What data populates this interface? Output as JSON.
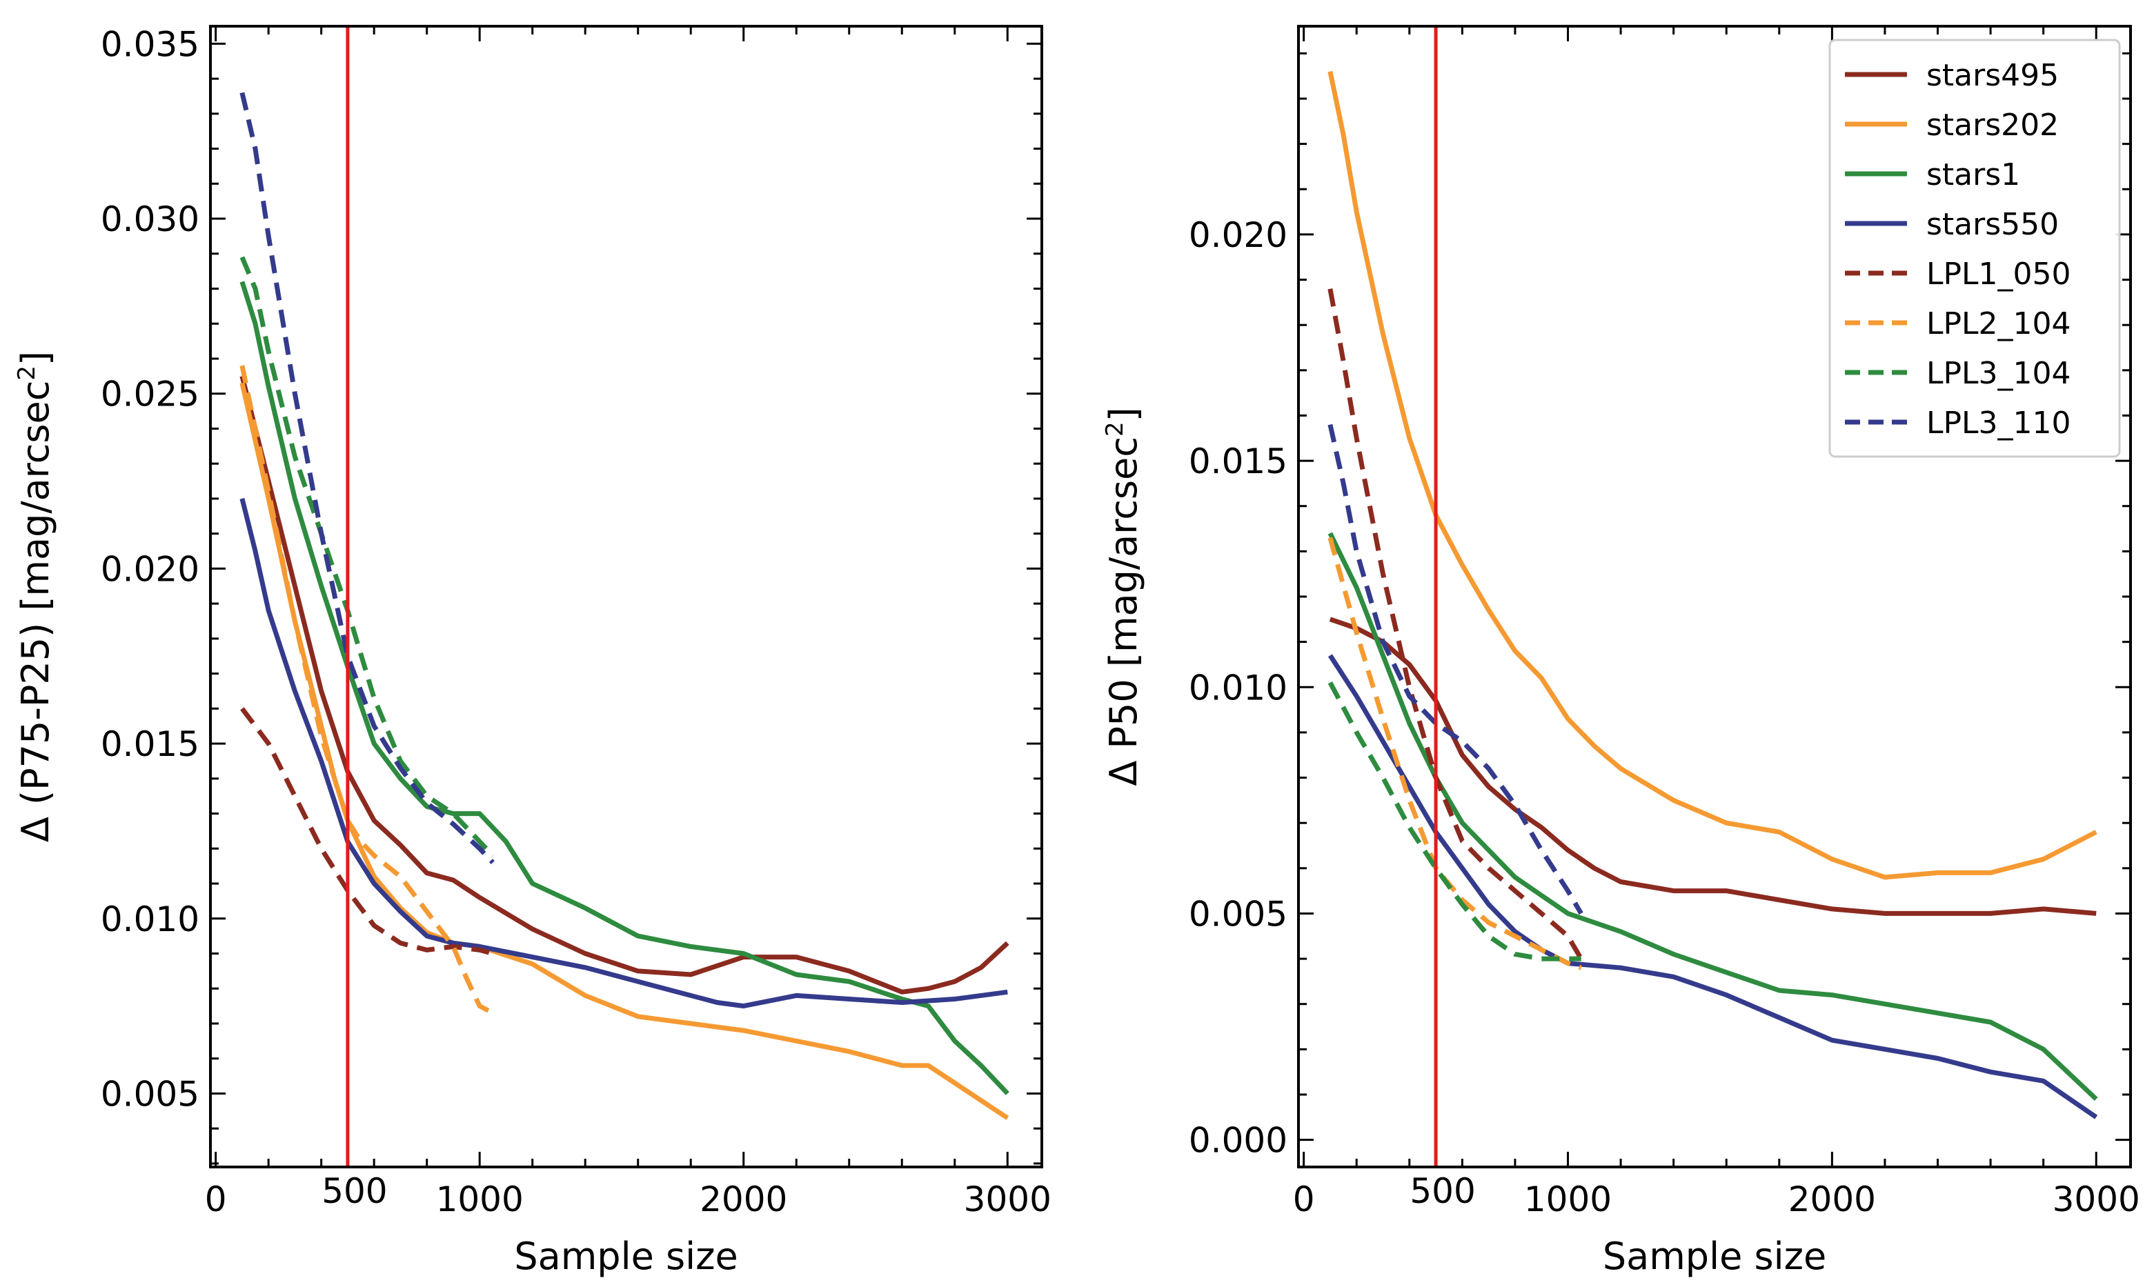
{
  "chart_data": [
    {
      "type": "line",
      "panel": "left",
      "title": "",
      "xlabel": "Sample size",
      "ylabel": "Δ (P75-P25) [mag/arcsec^2]",
      "ylabel_main": "Δ (P75-P25) [mag/arcsec",
      "ylabel_sup": "2",
      "ylabel_close": "]",
      "xlim": [
        -20,
        3130
      ],
      "ylim": [
        0.0029,
        0.0355
      ],
      "xticks": [
        0,
        1000,
        2000,
        3000
      ],
      "xtick_labels": [
        "0",
        "1000",
        "2000",
        "3000"
      ],
      "yticks": [
        0.005,
        0.01,
        0.015,
        0.02,
        0.025,
        0.03,
        0.035
      ],
      "ytick_labels": [
        "0.005",
        "0.010",
        "0.015",
        "0.020",
        "0.025",
        "0.030",
        "0.035"
      ],
      "vline": {
        "x": 500,
        "label": "500",
        "color": "#e41a1c"
      },
      "series": [
        {
          "name": "stars495",
          "color": "#8b2a1f",
          "dash": false,
          "x": [
            100,
            200,
            300,
            400,
            500,
            600,
            700,
            800,
            900,
            1000,
            1200,
            1400,
            1600,
            1800,
            2000,
            2200,
            2400,
            2500,
            2600,
            2700,
            2800,
            2900,
            3000
          ],
          "y": [
            0.0255,
            0.0225,
            0.0195,
            0.0165,
            0.0142,
            0.0128,
            0.0121,
            0.0113,
            0.0111,
            0.0106,
            0.0097,
            0.009,
            0.0085,
            0.0084,
            0.0089,
            0.0089,
            0.0085,
            0.0082,
            0.0079,
            0.008,
            0.0082,
            0.0086,
            0.0093
          ]
        },
        {
          "name": "stars202",
          "color": "#f59a32",
          "dash": false,
          "x": [
            100,
            200,
            300,
            400,
            450,
            500,
            600,
            700,
            800,
            900,
            1000,
            1200,
            1400,
            1600,
            1800,
            2000,
            2200,
            2400,
            2600,
            2700,
            2800,
            2900,
            3000
          ],
          "y": [
            0.0253,
            0.022,
            0.0185,
            0.0155,
            0.014,
            0.0128,
            0.0112,
            0.0103,
            0.0096,
            0.0093,
            0.0092,
            0.0087,
            0.0078,
            0.0072,
            0.007,
            0.0068,
            0.0065,
            0.0062,
            0.0058,
            0.0058,
            0.0053,
            0.0048,
            0.0043
          ]
        },
        {
          "name": "stars1",
          "color": "#2e8b3f",
          "dash": false,
          "x": [
            100,
            150,
            200,
            300,
            400,
            500,
            600,
            700,
            800,
            900,
            1000,
            1100,
            1200,
            1400,
            1600,
            1800,
            2000,
            2200,
            2400,
            2600,
            2700,
            2800,
            2900,
            3000
          ],
          "y": [
            0.0282,
            0.027,
            0.0252,
            0.022,
            0.0195,
            0.0172,
            0.015,
            0.014,
            0.0132,
            0.013,
            0.013,
            0.0122,
            0.011,
            0.0103,
            0.0095,
            0.0092,
            0.009,
            0.0084,
            0.0082,
            0.0077,
            0.0075,
            0.0065,
            0.0058,
            0.005
          ]
        },
        {
          "name": "stars550",
          "color": "#343b8c",
          "dash": false,
          "x": [
            100,
            150,
            200,
            300,
            400,
            500,
            600,
            700,
            800,
            900,
            1000,
            1200,
            1400,
            1600,
            1800,
            1900,
            2000,
            2200,
            2400,
            2600,
            2800,
            3000
          ],
          "y": [
            0.022,
            0.0205,
            0.0188,
            0.0165,
            0.0145,
            0.0122,
            0.011,
            0.0102,
            0.0095,
            0.0093,
            0.0092,
            0.0089,
            0.0086,
            0.0082,
            0.0078,
            0.0076,
            0.0075,
            0.0078,
            0.0077,
            0.0076,
            0.0077,
            0.0079
          ]
        },
        {
          "name": "LPL1_050",
          "color": "#8b2a1f",
          "dash": true,
          "x": [
            100,
            200,
            300,
            400,
            500,
            600,
            700,
            800,
            900,
            1000,
            1050
          ],
          "y": [
            0.016,
            0.015,
            0.0135,
            0.012,
            0.0108,
            0.0098,
            0.0093,
            0.0091,
            0.0092,
            0.0091,
            0.009
          ]
        },
        {
          "name": "LPL2_104",
          "color": "#f59a32",
          "dash": true,
          "x": [
            100,
            200,
            300,
            400,
            500,
            550,
            600,
            700,
            800,
            900,
            950,
            1000,
            1050
          ],
          "y": [
            0.0258,
            0.0222,
            0.0185,
            0.0152,
            0.0128,
            0.0122,
            0.0118,
            0.0112,
            0.0102,
            0.0092,
            0.0083,
            0.0075,
            0.0073
          ]
        },
        {
          "name": "LPL3_104",
          "color": "#2e8b3f",
          "dash": true,
          "x": [
            100,
            150,
            200,
            300,
            400,
            500,
            600,
            700,
            800,
            900,
            1000,
            1050
          ],
          "y": [
            0.0289,
            0.028,
            0.0262,
            0.0232,
            0.021,
            0.0188,
            0.0163,
            0.0145,
            0.0135,
            0.013,
            0.0122,
            0.0118
          ]
        },
        {
          "name": "LPL3_110",
          "color": "#343b8c",
          "dash": true,
          "x": [
            100,
            150,
            200,
            300,
            400,
            500,
            600,
            700,
            800,
            900,
            1000,
            1050
          ],
          "y": [
            0.0336,
            0.032,
            0.0295,
            0.025,
            0.021,
            0.0175,
            0.0155,
            0.0143,
            0.0133,
            0.0127,
            0.012,
            0.0116
          ]
        }
      ]
    },
    {
      "type": "line",
      "panel": "right",
      "title": "",
      "xlabel": "Sample size",
      "ylabel": "Δ P50 [mag/arcsec^2]",
      "ylabel_main": "Δ P50 [mag/arcsec",
      "ylabel_sup": "2",
      "ylabel_close": "]",
      "xlim": [
        -20,
        3130
      ],
      "ylim": [
        -0.0006,
        0.0246
      ],
      "xticks": [
        0,
        1000,
        2000,
        3000
      ],
      "xtick_labels": [
        "0",
        "1000",
        "2000",
        "3000"
      ],
      "yticks": [
        0.0,
        0.005,
        0.01,
        0.015,
        0.02
      ],
      "ytick_labels": [
        "0.000",
        "0.005",
        "0.010",
        "0.015",
        "0.020"
      ],
      "vline": {
        "x": 500,
        "label": "500",
        "color": "#e41a1c"
      },
      "legend": {
        "placement": "top-right"
      },
      "series": [
        {
          "name": "stars495",
          "color": "#8b2a1f",
          "dash": false,
          "x": [
            100,
            200,
            300,
            400,
            500,
            600,
            700,
            800,
            900,
            1000,
            1100,
            1200,
            1400,
            1600,
            1800,
            2000,
            2200,
            2400,
            2600,
            2800,
            3000
          ],
          "y": [
            0.0115,
            0.0113,
            0.011,
            0.0105,
            0.0097,
            0.0085,
            0.0078,
            0.0073,
            0.0069,
            0.0064,
            0.006,
            0.0057,
            0.0055,
            0.0055,
            0.0053,
            0.0051,
            0.005,
            0.005,
            0.005,
            0.0051,
            0.005
          ]
        },
        {
          "name": "stars202",
          "color": "#f59a32",
          "dash": false,
          "x": [
            100,
            150,
            200,
            300,
            400,
            500,
            600,
            700,
            800,
            900,
            1000,
            1100,
            1200,
            1400,
            1600,
            1800,
            2000,
            2200,
            2400,
            2600,
            2800,
            3000
          ],
          "y": [
            0.0236,
            0.0222,
            0.0205,
            0.0178,
            0.0155,
            0.0138,
            0.0127,
            0.0117,
            0.0108,
            0.0102,
            0.0093,
            0.0087,
            0.0082,
            0.0075,
            0.007,
            0.0068,
            0.0062,
            0.0058,
            0.0059,
            0.0059,
            0.0062,
            0.0068
          ]
        },
        {
          "name": "stars1",
          "color": "#2e8b3f",
          "dash": false,
          "x": [
            100,
            200,
            300,
            400,
            500,
            600,
            700,
            800,
            900,
            1000,
            1200,
            1400,
            1600,
            1800,
            2000,
            2200,
            2400,
            2600,
            2800,
            3000
          ],
          "y": [
            0.0134,
            0.0122,
            0.0107,
            0.0092,
            0.008,
            0.007,
            0.0064,
            0.0058,
            0.0054,
            0.005,
            0.0046,
            0.0041,
            0.0037,
            0.0033,
            0.0032,
            0.003,
            0.0028,
            0.0026,
            0.002,
            0.0009
          ]
        },
        {
          "name": "stars550",
          "color": "#343b8c",
          "dash": false,
          "x": [
            100,
            200,
            300,
            400,
            500,
            600,
            700,
            800,
            900,
            1000,
            1200,
            1400,
            1600,
            1800,
            2000,
            2200,
            2400,
            2600,
            2800,
            3000
          ],
          "y": [
            0.0107,
            0.0098,
            0.0088,
            0.0078,
            0.0068,
            0.006,
            0.0052,
            0.0046,
            0.0042,
            0.0039,
            0.0038,
            0.0036,
            0.0032,
            0.0027,
            0.0022,
            0.002,
            0.0018,
            0.0015,
            0.0013,
            0.0005
          ]
        },
        {
          "name": "LPL1_050",
          "color": "#8b2a1f",
          "dash": true,
          "x": [
            100,
            150,
            200,
            300,
            400,
            500,
            600,
            700,
            800,
            900,
            1000,
            1050
          ],
          "y": [
            0.0188,
            0.0172,
            0.0155,
            0.0125,
            0.01,
            0.008,
            0.0066,
            0.006,
            0.0055,
            0.005,
            0.0045,
            0.004
          ]
        },
        {
          "name": "LPL2_104",
          "color": "#f59a32",
          "dash": true,
          "x": [
            100,
            200,
            300,
            400,
            500,
            600,
            700,
            800,
            900,
            1000,
            1050
          ],
          "y": [
            0.0133,
            0.0112,
            0.0093,
            0.0075,
            0.006,
            0.0053,
            0.0048,
            0.0045,
            0.0042,
            0.0039,
            0.0038
          ]
        },
        {
          "name": "LPL3_104",
          "color": "#2e8b3f",
          "dash": true,
          "x": [
            100,
            200,
            300,
            400,
            500,
            600,
            700,
            800,
            900,
            1000,
            1050
          ],
          "y": [
            0.0101,
            0.009,
            0.008,
            0.0069,
            0.006,
            0.0052,
            0.0045,
            0.0041,
            0.004,
            0.004,
            0.004
          ]
        },
        {
          "name": "LPL3_110",
          "color": "#343b8c",
          "dash": true,
          "x": [
            100,
            150,
            200,
            300,
            400,
            500,
            600,
            700,
            800,
            900,
            1000,
            1050
          ],
          "y": [
            0.0158,
            0.0145,
            0.013,
            0.011,
            0.0098,
            0.0092,
            0.0088,
            0.0082,
            0.0074,
            0.0064,
            0.0055,
            0.005
          ]
        }
      ]
    }
  ]
}
